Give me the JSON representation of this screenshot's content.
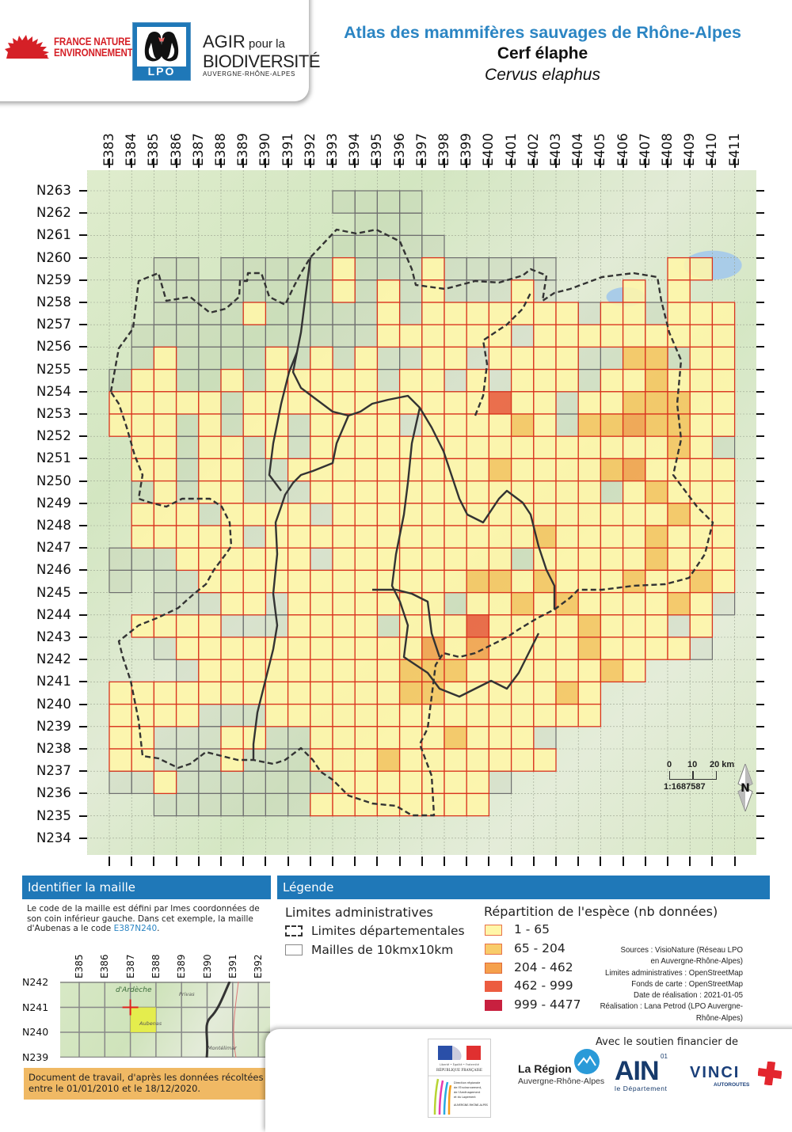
{
  "header": {
    "logos": {
      "fne": {
        "line1": "FRANCE NATURE",
        "line2": "ENVIRONNEMENT"
      },
      "lpo": {
        "text": "LPO"
      },
      "agir": {
        "line1a": "AGIR",
        "line1b": " pour la",
        "line2": "BIODIVERSITÉ",
        "line3": "AUVERGNE-RHÔNE-ALPES"
      }
    },
    "title": "Atlas des mammifères sauvages de Rhône-Alpes",
    "species_common": "Cerf élaphe",
    "species_latin": "Cervus elaphus"
  },
  "map": {
    "columns": [
      "E383",
      "E384",
      "E385",
      "E386",
      "E387",
      "E388",
      "E389",
      "E390",
      "E391",
      "E392",
      "E393",
      "E394",
      "E395",
      "E396",
      "E397",
      "E398",
      "E399",
      "E400",
      "E401",
      "E402",
      "E403",
      "E404",
      "E405",
      "E406",
      "E407",
      "E408",
      "E409",
      "E410",
      "E411"
    ],
    "rows": [
      "N263",
      "N262",
      "N261",
      "N260",
      "N259",
      "N258",
      "N257",
      "N256",
      "N255",
      "N254",
      "N253",
      "N252",
      "N251",
      "N250",
      "N249",
      "N248",
      "N247",
      "N246",
      "N245",
      "N244",
      "N243",
      "N242",
      "N241",
      "N240",
      "N239",
      "N238",
      "N237",
      "N236",
      "N235",
      "N234"
    ],
    "colors": {
      "grid_outline": "#6f6f6f",
      "cell_border": "#d9341f",
      "level1": "#fff6a8",
      "level2": "#f6c55e",
      "level3": "#f3a04a",
      "level4": "#ea5d3a",
      "level5": "#c8203f",
      "boundary": "#333333"
    },
    "cells_note": "each string covers columns E383..E410; '.'=none, 'g'=mesh outline only, 1-5 = abundance class; row key = lower-left N code",
    "cells": {
      "N262": "..........gggg..............",
      "N261": "...........ggg..............",
      "N260": "..........ggggg.............",
      "N259": "..gg.ggggg1ggg1ggggg.....11..",
      "N258": "..gggggggg1g1g1ggg1g...1.1...",
      "N257": "..gggg1ggggg1g1111111g11g111.",
      "N256": ".ggggggggggg111111g111111111g",
      "N255": ".g1gggg1g1g1gg11g1111gg22g111",
      "N254": "g11gg1g11111g11g1g111g1121111",
      "N253": "11111g11111111111411g1122211g",
      "N252": "111g1g11g1111g111121g2232211g",
      "N251": ".11g11g1g111111111111111121g.",
      "N250": ".11g11gg11111111121111231111.",
      "N249": ".g1g11ggg1111111111111g121111",
      "N248": ".111g1111g11111111111111121111",
      "N247": ".11111g1111111111112111121111",
      "N246": "ggg111111g11111111g1111121111",
      "N245": "g.gg111111111111221211121121gg",
      "N244": "..ggg11g1111111g11212111121g.",
      "N243": ".1111ggg1111g111411112111g1...",
      "N242": "..g11111111111313111121111g..",
      "N241": "...g11111111122211111121......",
      "N240": "1111111111111221111121.......",
      "N239": "1111ggg111111111111111.......",
      "N238": "11ggg11gg1111112111g.........",
      "N237": "11ggg1ggg11121111111.........",
      "N236": "gg1ggggggg1111111g...........",
      "N235": "..ggggggg11111111............",
      "N234": "..............................",
      "N233": "........................"
    },
    "scale": {
      "labels": [
        "0",
        "10",
        "20 km"
      ],
      "ratio": "1:1687587"
    },
    "north_label": "N"
  },
  "identify_panel": {
    "title": "Identifier la maille",
    "text_before": "Le code de la maille est défini par lmes coordonnées de son coin inférieur gauche. Dans cet exemple, la maille d'Aubenas a le code ",
    "example_code": "E387N240",
    "text_after": ".",
    "mini_columns": [
      "E385",
      "E386",
      "E387",
      "E388",
      "E389",
      "E390",
      "E391",
      "E392"
    ],
    "mini_rows": [
      "N242",
      "N241",
      "N240",
      "N239"
    ],
    "mini_places": [
      "d'Ardèche",
      "Privas",
      "Aubenas",
      "Montélimar"
    ],
    "note": "Document de travail, d'après les données récoltées entre le 01/01/2010 et le 18/12/2020."
  },
  "legend": {
    "title": "Légende",
    "admin_title": "Limites administratives",
    "admin_items": [
      "Limites départementales",
      "Mailles de 10kmx10km"
    ],
    "distribution_title": "Répartition de l'espèce (nb données)",
    "classes": [
      {
        "label": "1 - 65",
        "color": "#fff6a8",
        "border": "#e8734a"
      },
      {
        "label": "65 - 204",
        "color": "#f8cc6a",
        "border": "#e8734a"
      },
      {
        "label": "204 - 462",
        "color": "#f5a04c",
        "border": "#e06a3a"
      },
      {
        "label": "462 - 999",
        "color": "#ec5c40",
        "border": "#ec5c40"
      },
      {
        "label": "999 - 4477",
        "color": "#c8203f",
        "border": "#c8203f"
      }
    ],
    "credits": [
      "Sources :  VisioNature (Réseau LPO",
      "en Auvergne-Rhône-Alpes)",
      "Limites administratives : OpenStreetMap",
      "Fonds de carte : OpenStreetMap",
      "Date de réalisation : 2021-01-05",
      "Réalisation :  Lana Petrod (LPO Auvergne-",
      "Rhône-Alpes)"
    ]
  },
  "footer": {
    "support_label": "Avec le soutien financier de",
    "rf": {
      "motto": "Liberté • Égalité • Fraternité",
      "name": "RÉPUBLIQUE FRANÇAISE",
      "dreal": "Direction régionale de l'Environnement, de l'Aménagement et du Logement",
      "dreal_region": "AUVERGNE-RHÔNE-ALPES"
    },
    "region": {
      "line1": "La Région",
      "line2": "Auvergne-Rhône-Alpes"
    },
    "ain": {
      "big": "AIN",
      "num": "01",
      "sub": "le Département"
    },
    "vinci": {
      "big": "VINCI",
      "sub": "AUTOROUTES"
    }
  }
}
